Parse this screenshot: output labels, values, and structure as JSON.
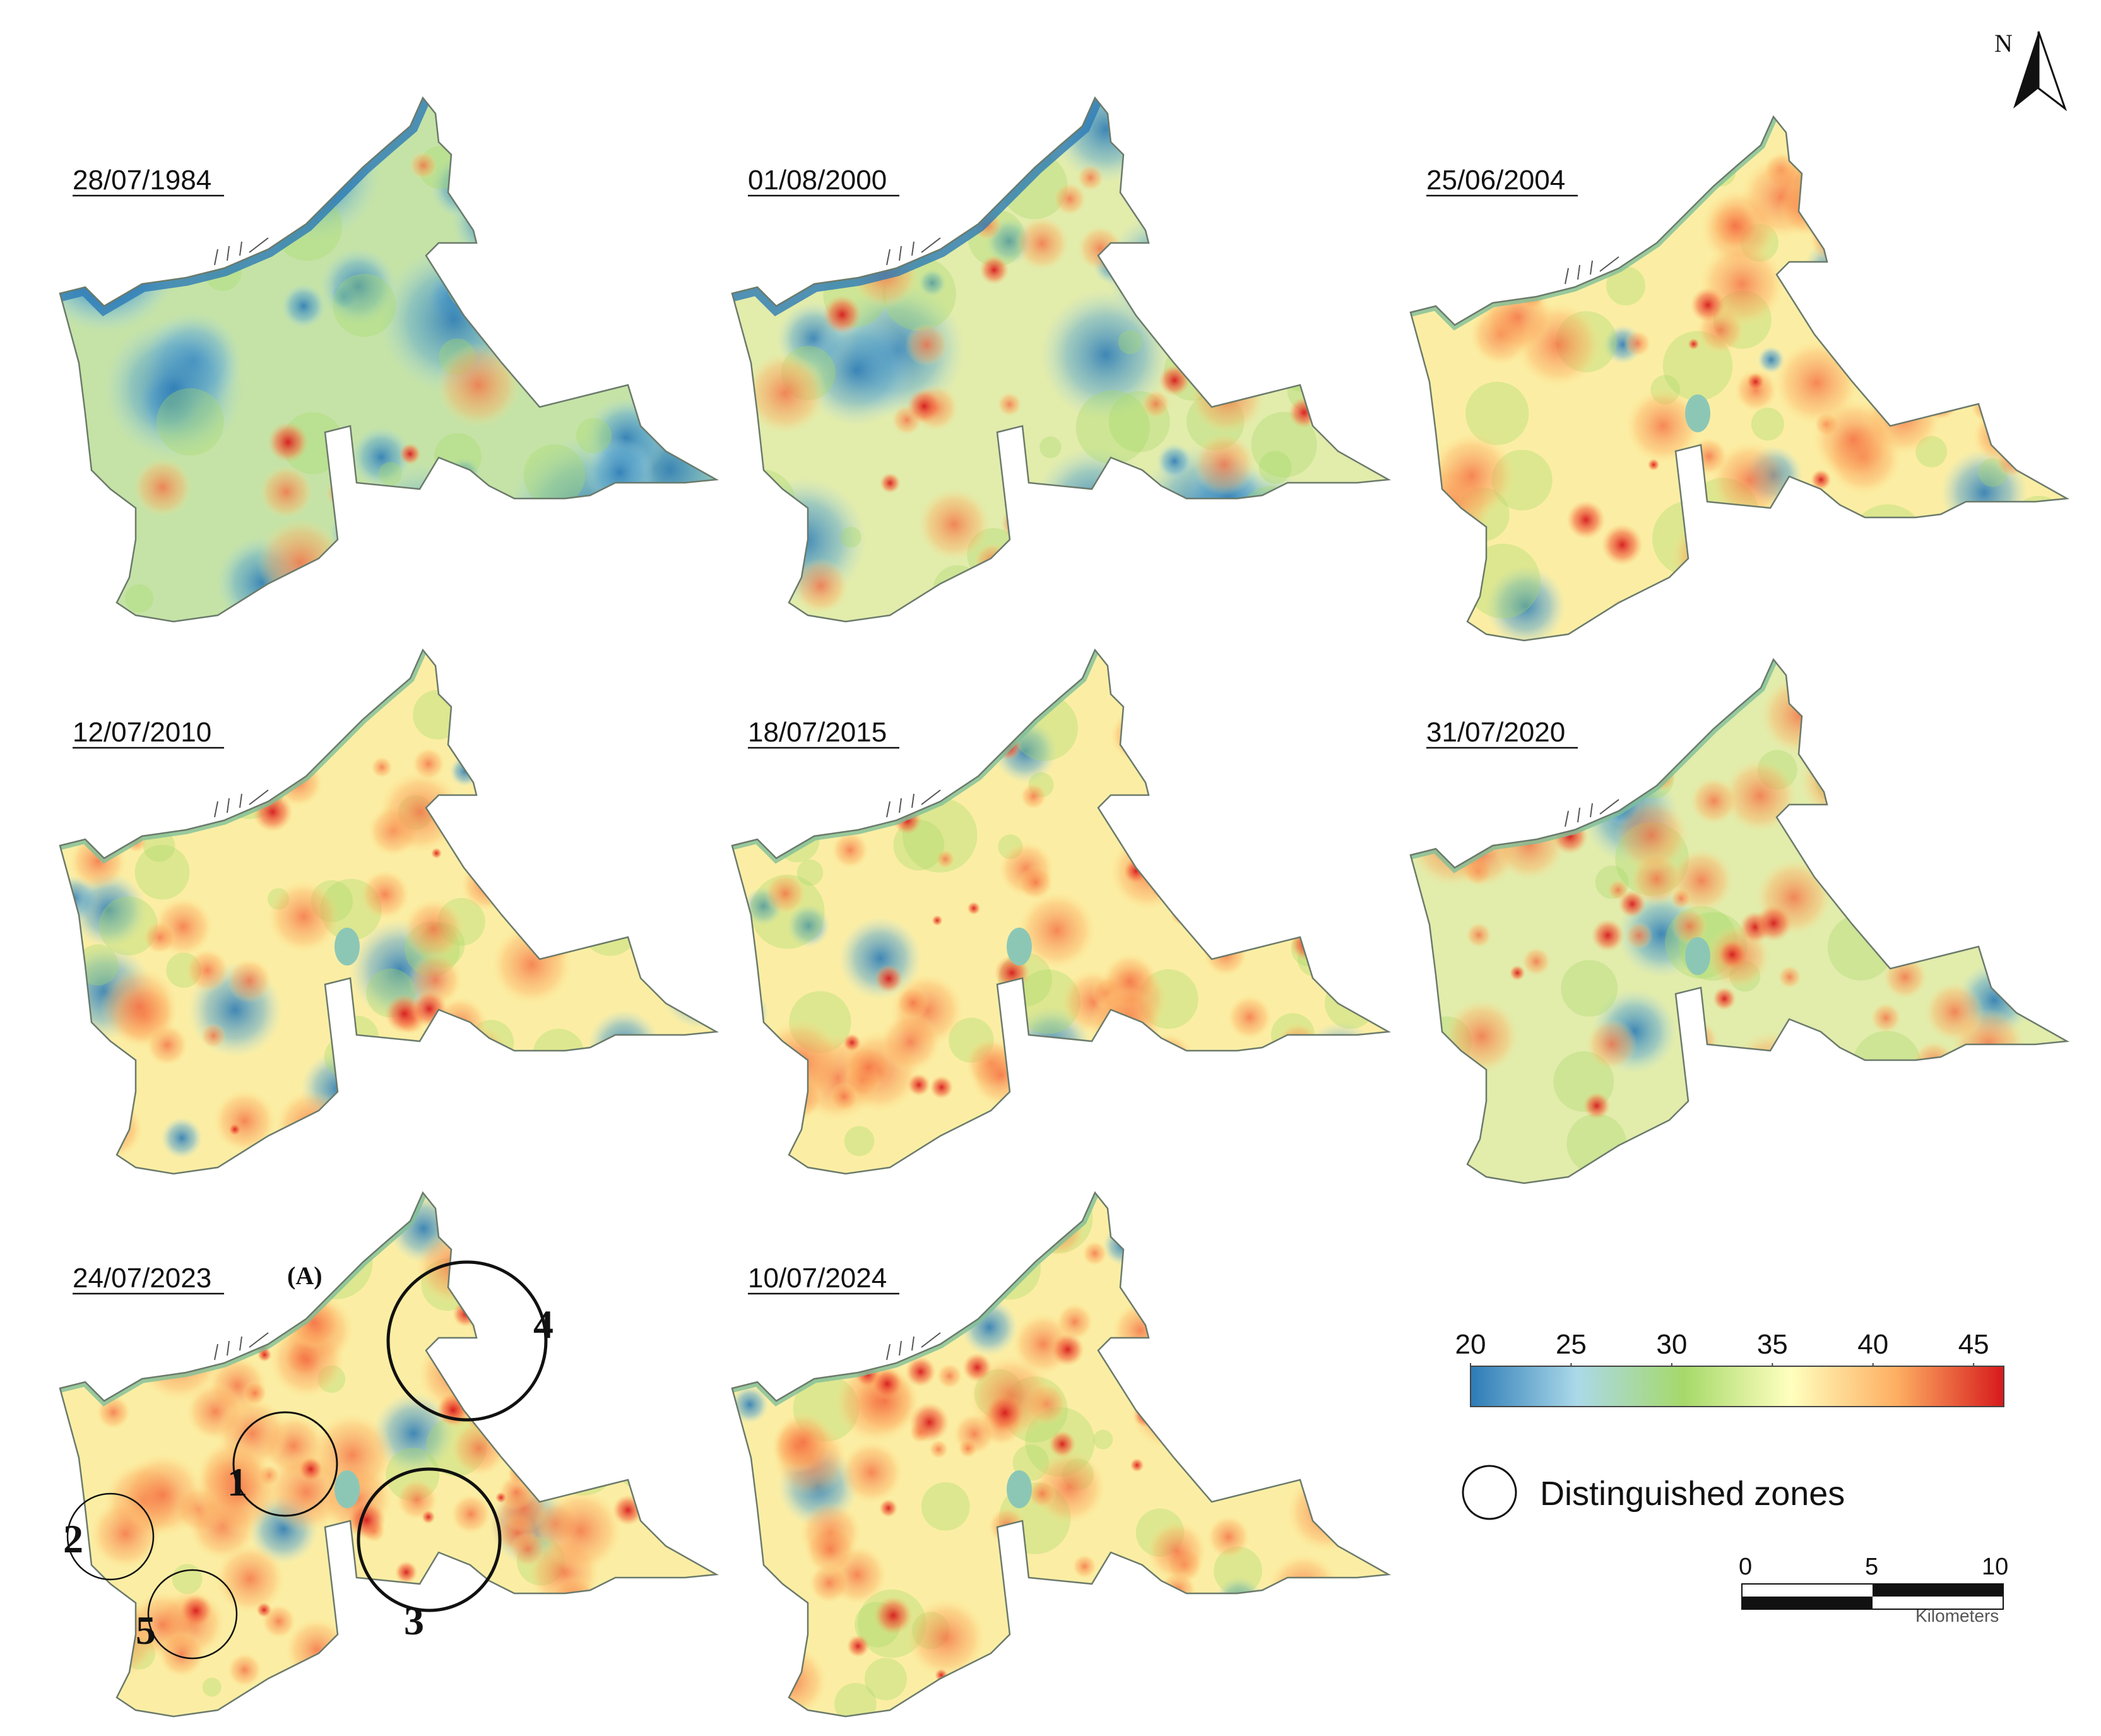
{
  "panels": [
    {
      "date": "28/07/1984",
      "heat": 0.05,
      "blue": 0.75
    },
    {
      "date": "01/08/2000",
      "heat": 0.35,
      "blue": 0.45
    },
    {
      "date": "25/06/2004",
      "heat": 0.65,
      "blue": 0.08
    },
    {
      "date": "12/07/2010",
      "heat": 0.55,
      "blue": 0.18
    },
    {
      "date": "18/07/2015",
      "heat": 0.6,
      "blue": 0.05
    },
    {
      "date": "31/07/2020",
      "heat": 0.5,
      "blue": 0.1
    },
    {
      "date": "24/07/2023",
      "heat": 0.82,
      "blue": 0.05
    },
    {
      "date": "10/07/2024",
      "heat": 0.75,
      "blue": 0.05
    }
  ],
  "panel_label": "(A)",
  "zones": [
    "1",
    "2",
    "3",
    "4",
    "5"
  ],
  "legend": {
    "ticks": [
      "20",
      "25",
      "30",
      "35",
      "40",
      "45"
    ],
    "min": 20,
    "max": 46.5,
    "colors": [
      "#2c7bb6",
      "#abd9e9",
      "#a6d96a",
      "#ffffbf",
      "#fdae61",
      "#d7191c"
    ],
    "zones_label": "Distinguished zones"
  },
  "scale_bar": {
    "ticks": [
      "0",
      "5",
      "10"
    ],
    "unit": "Kilometers"
  },
  "north_arrow": {
    "label": "N"
  }
}
